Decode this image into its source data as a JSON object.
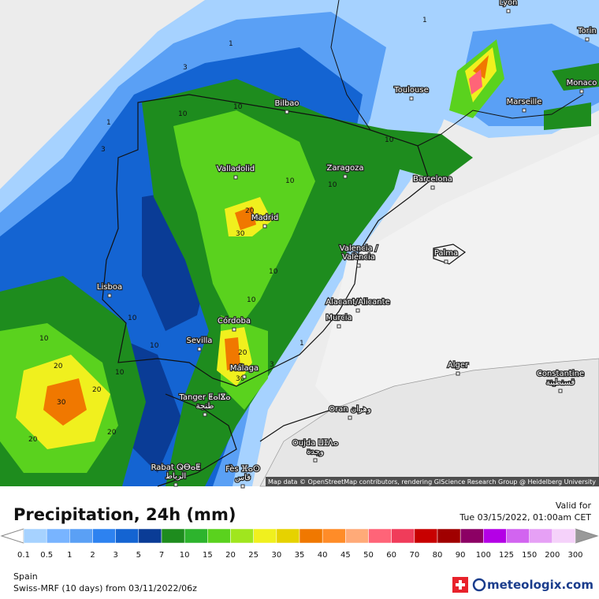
{
  "header": {
    "title": "Precipitation, 24h (mm)",
    "valid_label": "Valid for",
    "valid_time": "Tue 03/15/2022, 01:00am CET"
  },
  "footer": {
    "region": "Spain",
    "model": "Swiss-MRF (10 days) from 03/11/2022/06z",
    "brand": "meteologix.com"
  },
  "map": {
    "attribution": "Map data © OpenStreetMap contributors, rendering GIScience Research Group @ Heidelberg University",
    "cities": [
      [
        "Lyon"
      ],
      [
        "Torin"
      ],
      [
        "Monaco"
      ],
      [
        "Toulouse"
      ],
      [
        "Marseille"
      ],
      [
        "Bilbao"
      ],
      [
        "Valladolid"
      ],
      [
        "Zaragoza"
      ],
      [
        "Barcelona"
      ],
      [
        "Madrid"
      ],
      [
        "Palma"
      ],
      [
        "Valencia /",
        "València"
      ],
      [
        "Lisboa"
      ],
      [
        "Alacant/Alicante"
      ],
      [
        "Murcia"
      ],
      [
        "Córdoba"
      ],
      [
        "Sevilla"
      ],
      [
        "Alger"
      ],
      [
        "Málaga"
      ],
      [
        "Constantine",
        "قسنطينة"
      ],
      [
        "Tanger ⵟⴰⵏⴵⴰ",
        "طنجة"
      ],
      [
        "Oran وهران"
      ],
      [
        "Oujda ⵡⵊⴷⴰ",
        "وجدة"
      ],
      [
        "Rabat ⵕⴱⴰⵟ",
        "الرباط"
      ],
      [
        "Fès ⴼⴰⵙ",
        "فاس"
      ]
    ],
    "contour_labels": [
      "1",
      "3",
      "1",
      "10",
      "10",
      "3",
      "10",
      "20",
      "30",
      "10",
      "10",
      "10",
      "10",
      "20",
      "30",
      "10",
      "20",
      "20",
      "30",
      "20",
      "20",
      "10",
      "1",
      "3",
      "10",
      "10",
      "1"
    ]
  },
  "legend": {
    "labels": [
      0.1,
      0.5,
      1,
      2,
      3,
      5,
      7,
      10,
      15,
      20,
      25,
      30,
      35,
      40,
      45,
      50,
      60,
      70,
      80,
      90,
      100,
      125,
      150,
      200,
      300
    ],
    "colors": [
      "#a6d2ff",
      "#78b4ff",
      "#5aa0f5",
      "#2d82f0",
      "#1464d2",
      "#0a3c96",
      "#1e8c1e",
      "#2db42d",
      "#5ad21e",
      "#a0e61e",
      "#f0f01e",
      "#e6d200",
      "#f07800",
      "#ff8c28",
      "#ffaa78",
      "#ff6478",
      "#f03c5a",
      "#c80000",
      "#a00000",
      "#8c0064",
      "#b400e6",
      "#d264f0",
      "#e6a0f5",
      "#f5d2fa",
      "#d2d2d2"
    ]
  }
}
